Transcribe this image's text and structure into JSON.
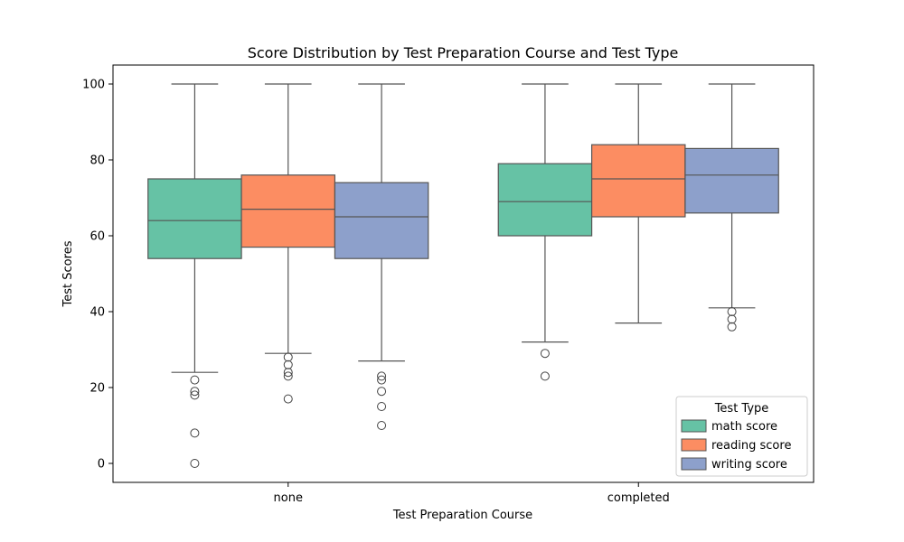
{
  "chart_data": {
    "type": "box",
    "title": "Score Distribution by Test Preparation Course and Test Type",
    "xlabel": "Test Preparation Course",
    "ylabel": "Test Scores",
    "categories": [
      "none",
      "completed"
    ],
    "ylim": [
      -5,
      105
    ],
    "yticks": [
      0,
      20,
      40,
      60,
      80,
      100
    ],
    "grid": false,
    "legend": {
      "title": "Test Type",
      "placement": "lower-right"
    },
    "series": [
      {
        "name": "math score",
        "color": "#66c2a5",
        "boxes": [
          {
            "category": "none",
            "whisker_low": 24,
            "q1": 54,
            "median": 64,
            "q3": 75,
            "whisker_high": 100,
            "outliers": [
              22,
              19,
              18,
              8,
              0
            ]
          },
          {
            "category": "completed",
            "whisker_low": 32,
            "q1": 60,
            "median": 69,
            "q3": 79,
            "whisker_high": 100,
            "outliers": [
              29,
              23
            ]
          }
        ]
      },
      {
        "name": "reading score",
        "color": "#fc8d62",
        "boxes": [
          {
            "category": "none",
            "whisker_low": 29,
            "q1": 57,
            "median": 67,
            "q3": 76,
            "whisker_high": 100,
            "outliers": [
              28,
              26,
              24,
              23,
              17
            ]
          },
          {
            "category": "completed",
            "whisker_low": 37,
            "q1": 65,
            "median": 75,
            "q3": 84,
            "whisker_high": 100,
            "outliers": []
          }
        ]
      },
      {
        "name": "writing score",
        "color": "#8da0cb",
        "boxes": [
          {
            "category": "none",
            "whisker_low": 27,
            "q1": 54,
            "median": 65,
            "q3": 74,
            "whisker_high": 100,
            "outliers": [
              23,
              22,
              19,
              15,
              10
            ]
          },
          {
            "category": "completed",
            "whisker_low": 41,
            "q1": 66,
            "median": 76,
            "q3": 83,
            "whisker_high": 100,
            "outliers": [
              40,
              38,
              36
            ]
          }
        ]
      }
    ]
  }
}
